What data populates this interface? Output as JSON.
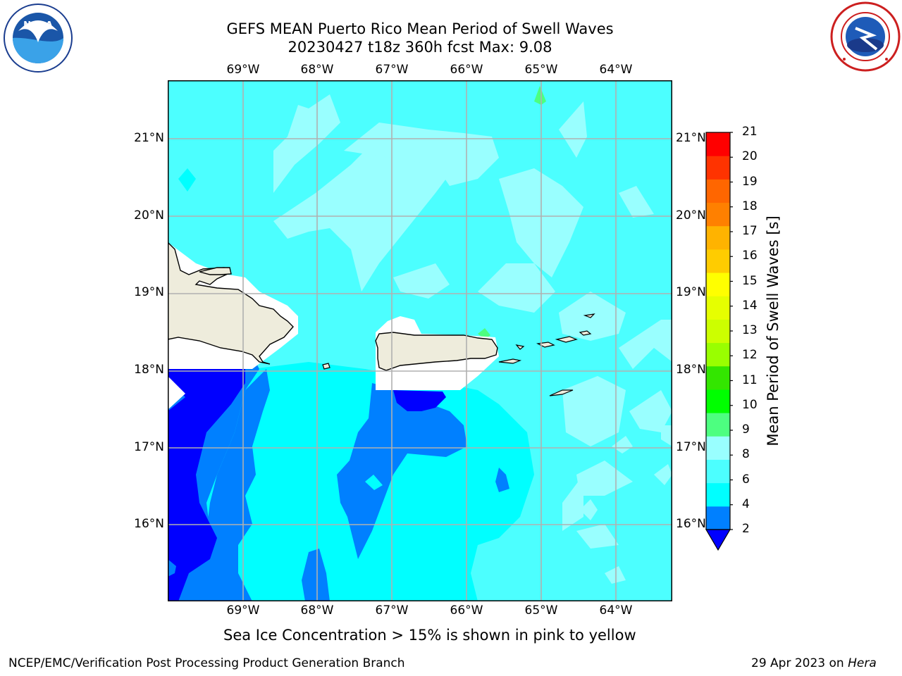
{
  "header": {
    "title_line1": "GEFS MEAN Puerto Rico Mean Period of Swell Waves",
    "title_line2": "20230427 t18z 360h fcst   Max: 9.08"
  },
  "logos": {
    "left": {
      "icon": "noaa-logo",
      "text": "NOAA",
      "ring_text": "NATIONAL OCEANIC AND ATMOSPHERIC ADMINISTRATION · U.S. DEPARTMENT OF COMMERCE"
    },
    "right": {
      "icon": "nws-logo",
      "ring_text": "NATIONAL WEATHER SERVICE"
    }
  },
  "map": {
    "lon_labels": [
      "69°W",
      "68°W",
      "67°W",
      "66°W",
      "65°W",
      "64°W"
    ],
    "lat_labels": [
      "21°N",
      "20°N",
      "19°N",
      "18°N",
      "17°N",
      "16°N"
    ],
    "colors": {
      "land": "#eeecdc",
      "mask": "#ffffff",
      "grid": "#b0b0b0",
      "coast": "#000000"
    }
  },
  "colorbar": {
    "label": "Mean Period of Swell Waves [s]",
    "ticks": [
      "2",
      "4",
      "6",
      "8",
      "9",
      "10",
      "11",
      "12",
      "13",
      "14",
      "15",
      "16",
      "17",
      "18",
      "19",
      "20",
      "21"
    ],
    "colors": [
      "#0080ff",
      "#00ffff",
      "#4cffff",
      "#99ffff",
      "#4dff80",
      "#00ff00",
      "#33e600",
      "#99ff00",
      "#ccff00",
      "#e6ff00",
      "#ffff00",
      "#ffcc00",
      "#ffb300",
      "#ff8000",
      "#ff6600",
      "#ff3300",
      "#ff0000"
    ],
    "under_color": "#0000ff"
  },
  "footer": {
    "caption": "Sea Ice Concentration > 15% is shown in pink to yellow",
    "credit": "NCEP/EMC/Verification Post Processing Product Generation Branch",
    "date": "29 Apr 2023 on ",
    "host": "Hera"
  }
}
